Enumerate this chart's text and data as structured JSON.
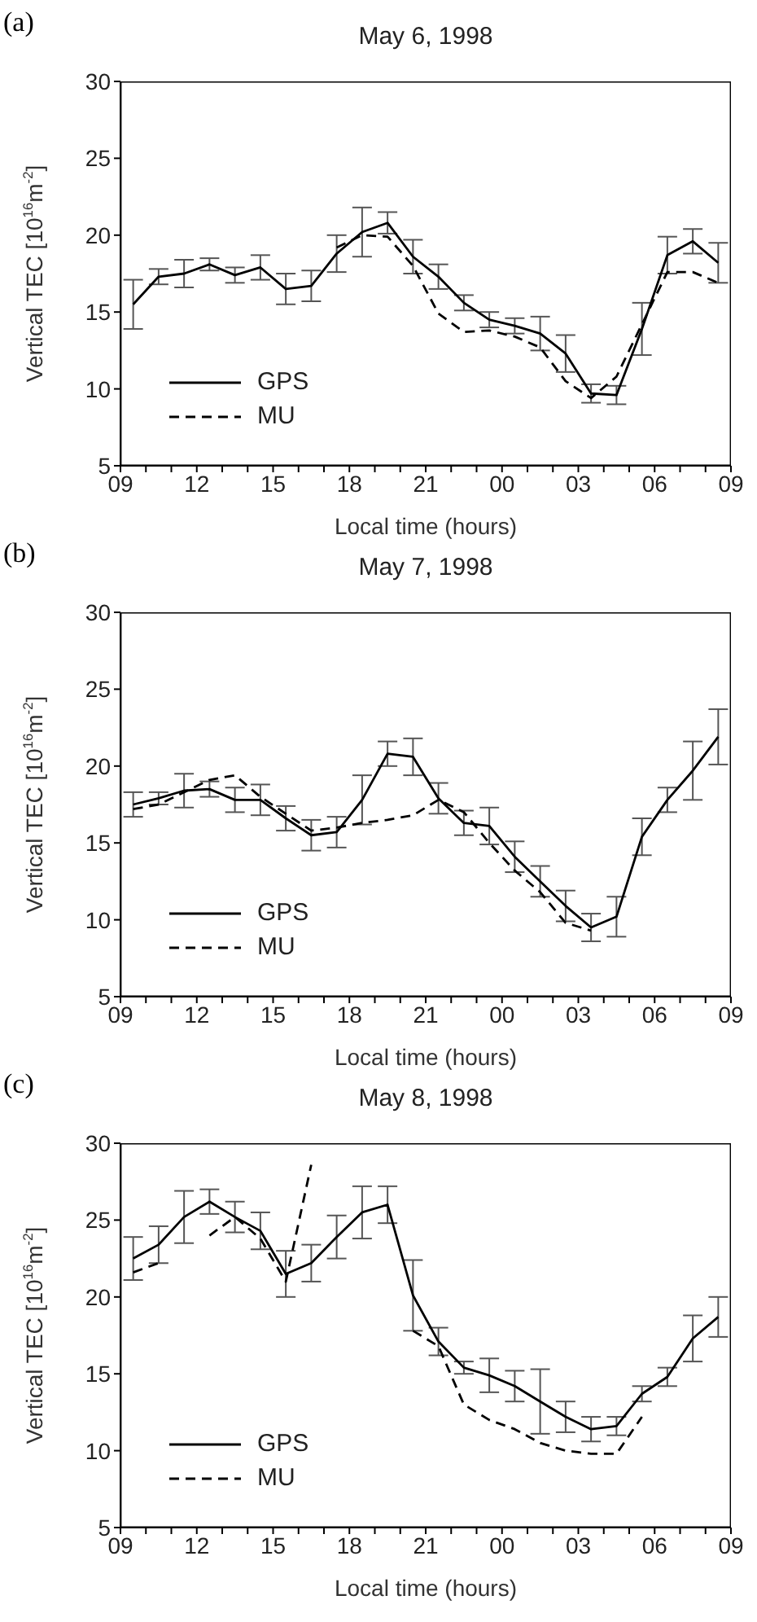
{
  "chart_data": [
    {
      "type": "line",
      "title": "May 6, 1998",
      "xlabel": "Local time (hours)",
      "ylabel": "Vertical TEC [10$^{16}$m$^{-2}$]",
      "annotations": [
        "(a)"
      ],
      "x": [
        9.5,
        10.5,
        11.5,
        12.5,
        13.5,
        14.5,
        15.5,
        16.5,
        17.5,
        18.5,
        19.5,
        20.5,
        21.5,
        22.5,
        23.5,
        24.5,
        25.5,
        26.5,
        27.5,
        28.5,
        29.5,
        30.5,
        31.5,
        32.5
      ],
      "series": [
        {
          "name": "GPS",
          "color": "#000000",
          "line_style": "solid",
          "values": [
            15.5,
            17.3,
            17.5,
            18.1,
            17.4,
            17.9,
            16.5,
            16.7,
            18.8,
            20.2,
            20.8,
            18.6,
            17.3,
            15.6,
            14.5,
            14.1,
            13.6,
            12.3,
            9.7,
            9.6,
            13.9,
            18.7,
            19.6,
            18.2
          ],
          "errors": [
            1.6,
            0.5,
            0.9,
            0.4,
            0.5,
            0.8,
            1.0,
            1.0,
            1.2,
            1.6,
            0.7,
            1.1,
            0.8,
            0.5,
            0.5,
            0.5,
            1.1,
            1.2,
            0.6,
            0.6,
            1.7,
            1.2,
            0.8,
            1.3
          ]
        },
        {
          "name": "MU",
          "color": "#000000",
          "line_style": "dashed",
          "values": [
            null,
            null,
            null,
            null,
            null,
            null,
            null,
            null,
            19.2,
            20.0,
            19.9,
            18.0,
            14.9,
            13.7,
            13.8,
            13.4,
            12.7,
            10.5,
            9.4,
            10.8,
            14.2,
            17.6,
            17.6,
            16.9
          ]
        }
      ],
      "xlim": [
        9,
        33
      ],
      "xticks": [
        {
          "value": 9,
          "label": "09"
        },
        {
          "value": 10,
          "label": null
        },
        {
          "value": 11,
          "label": null
        },
        {
          "value": 12,
          "label": "12"
        },
        {
          "value": 13,
          "label": null
        },
        {
          "value": 14,
          "label": null
        },
        {
          "value": 15,
          "label": "15"
        },
        {
          "value": 16,
          "label": null
        },
        {
          "value": 17,
          "label": null
        },
        {
          "value": 18,
          "label": "18"
        },
        {
          "value": 19,
          "label": null
        },
        {
          "value": 20,
          "label": null
        },
        {
          "value": 21,
          "label": "21"
        },
        {
          "value": 22,
          "label": null
        },
        {
          "value": 23,
          "label": null
        },
        {
          "value": 24,
          "label": "00"
        },
        {
          "value": 25,
          "label": null
        },
        {
          "value": 26,
          "label": null
        },
        {
          "value": 27,
          "label": "03"
        },
        {
          "value": 28,
          "label": null
        },
        {
          "value": 29,
          "label": null
        },
        {
          "value": 30,
          "label": "06"
        },
        {
          "value": 31,
          "label": null
        },
        {
          "value": 32,
          "label": null
        },
        {
          "value": 33,
          "label": "09"
        }
      ],
      "ylim": [
        5,
        30
      ],
      "yticks": [
        5,
        10,
        15,
        20,
        25,
        30
      ],
      "grid": false,
      "legend": "bottom left",
      "marker": "none"
    },
    {
      "type": "line",
      "title": "May 7, 1998",
      "xlabel": "Local time (hours)",
      "ylabel": "Vertical TEC [10$^{16}$m$^{-2}$]",
      "annotations": [
        "(b)"
      ],
      "x": [
        9.5,
        10.5,
        11.5,
        12.5,
        13.5,
        14.5,
        15.5,
        16.5,
        17.5,
        18.5,
        19.5,
        20.5,
        21.5,
        22.5,
        23.5,
        24.5,
        25.5,
        26.5,
        27.5,
        28.5,
        29.5,
        30.5,
        31.5,
        32.5
      ],
      "series": [
        {
          "name": "GPS",
          "color": "#000000",
          "line_style": "solid",
          "values": [
            17.5,
            17.9,
            18.4,
            18.5,
            17.8,
            17.8,
            16.6,
            15.5,
            15.7,
            17.8,
            20.8,
            20.6,
            17.9,
            16.3,
            16.1,
            14.1,
            12.5,
            10.9,
            9.5,
            10.2,
            15.4,
            17.8,
            19.7,
            21.9
          ],
          "errors": [
            0.8,
            0.4,
            1.1,
            0.5,
            0.8,
            1.0,
            0.8,
            1.0,
            1.0,
            1.6,
            0.8,
            1.2,
            1.0,
            0.8,
            1.2,
            1.0,
            1.0,
            1.0,
            0.9,
            1.3,
            1.2,
            0.8,
            1.9,
            1.8
          ]
        },
        {
          "name": "MU",
          "color": "#000000",
          "line_style": "dashed",
          "values": [
            17.2,
            17.5,
            18.3,
            19.1,
            19.4,
            18.0,
            16.9,
            15.8,
            16.0,
            16.3,
            16.5,
            16.8,
            17.8,
            17.0,
            15.0,
            13.2,
            11.8,
            9.8,
            9.3,
            null,
            null,
            null,
            null,
            null
          ]
        }
      ],
      "xlim": [
        9,
        33
      ],
      "xticks": [
        {
          "value": 9,
          "label": "09"
        },
        {
          "value": 10,
          "label": null
        },
        {
          "value": 11,
          "label": null
        },
        {
          "value": 12,
          "label": "12"
        },
        {
          "value": 13,
          "label": null
        },
        {
          "value": 14,
          "label": null
        },
        {
          "value": 15,
          "label": "15"
        },
        {
          "value": 16,
          "label": null
        },
        {
          "value": 17,
          "label": null
        },
        {
          "value": 18,
          "label": "18"
        },
        {
          "value": 19,
          "label": null
        },
        {
          "value": 20,
          "label": null
        },
        {
          "value": 21,
          "label": "21"
        },
        {
          "value": 22,
          "label": null
        },
        {
          "value": 23,
          "label": null
        },
        {
          "value": 24,
          "label": "00"
        },
        {
          "value": 25,
          "label": null
        },
        {
          "value": 26,
          "label": null
        },
        {
          "value": 27,
          "label": "03"
        },
        {
          "value": 28,
          "label": null
        },
        {
          "value": 29,
          "label": null
        },
        {
          "value": 30,
          "label": "06"
        },
        {
          "value": 31,
          "label": null
        },
        {
          "value": 32,
          "label": null
        },
        {
          "value": 33,
          "label": "09"
        }
      ],
      "ylim": [
        5,
        30
      ],
      "yticks": [
        5,
        10,
        15,
        20,
        25,
        30
      ],
      "grid": false,
      "legend": "bottom left",
      "marker": "none"
    },
    {
      "type": "line",
      "title": "May 8, 1998",
      "xlabel": "Local time (hours)",
      "ylabel": "Vertical TEC [10$^{16}$m$^{-2}$]",
      "annotations": [
        "(c)"
      ],
      "x": [
        9.5,
        10.5,
        11.5,
        12.5,
        13.5,
        14.5,
        15.5,
        16.5,
        17.5,
        18.5,
        19.5,
        20.5,
        21.5,
        22.5,
        23.5,
        24.5,
        25.5,
        26.5,
        27.5,
        28.5,
        29.5,
        30.5,
        31.5,
        32.5
      ],
      "series": [
        {
          "name": "GPS",
          "color": "#000000",
          "line_style": "solid",
          "values": [
            22.5,
            23.4,
            25.2,
            26.2,
            25.2,
            24.3,
            21.5,
            22.2,
            23.9,
            25.5,
            26.0,
            20.1,
            17.1,
            15.4,
            14.9,
            14.2,
            13.2,
            12.2,
            11.4,
            11.6,
            13.7,
            14.8,
            17.3,
            18.7
          ],
          "errors": [
            1.4,
            1.2,
            1.7,
            0.8,
            1.0,
            1.2,
            1.5,
            1.2,
            1.4,
            1.7,
            1.2,
            2.3,
            0.9,
            0.4,
            1.1,
            1.0,
            2.1,
            1.0,
            0.8,
            0.6,
            0.5,
            0.6,
            1.5,
            1.3
          ]
        },
        {
          "name": "MU",
          "color": "#000000",
          "line_style": "dashed",
          "values": [
            21.6,
            22.2,
            null,
            24.0,
            25.2,
            23.8,
            21.0,
            28.6,
            null,
            null,
            null,
            17.8,
            16.8,
            13.0,
            12.0,
            11.4,
            10.5,
            10.0,
            9.8,
            9.8,
            12.2,
            null,
            null,
            null
          ]
        }
      ],
      "xlim": [
        9,
        33
      ],
      "xticks": [
        {
          "value": 9,
          "label": "09"
        },
        {
          "value": 10,
          "label": null
        },
        {
          "value": 11,
          "label": null
        },
        {
          "value": 12,
          "label": "12"
        },
        {
          "value": 13,
          "label": null
        },
        {
          "value": 14,
          "label": null
        },
        {
          "value": 15,
          "label": "15"
        },
        {
          "value": 16,
          "label": null
        },
        {
          "value": 17,
          "label": null
        },
        {
          "value": 18,
          "label": "18"
        },
        {
          "value": 19,
          "label": null
        },
        {
          "value": 20,
          "label": null
        },
        {
          "value": 21,
          "label": "21"
        },
        {
          "value": 22,
          "label": null
        },
        {
          "value": 23,
          "label": null
        },
        {
          "value": 24,
          "label": "00"
        },
        {
          "value": 25,
          "label": null
        },
        {
          "value": 26,
          "label": null
        },
        {
          "value": 27,
          "label": "03"
        },
        {
          "value": 28,
          "label": null
        },
        {
          "value": 29,
          "label": null
        },
        {
          "value": 30,
          "label": "06"
        },
        {
          "value": 31,
          "label": null
        },
        {
          "value": 32,
          "label": null
        },
        {
          "value": 33,
          "label": "09"
        }
      ],
      "ylim": [
        5,
        30
      ],
      "yticks": [
        5,
        10,
        15,
        20,
        25,
        30
      ],
      "grid": false,
      "legend": "bottom left",
      "marker": "none"
    }
  ]
}
